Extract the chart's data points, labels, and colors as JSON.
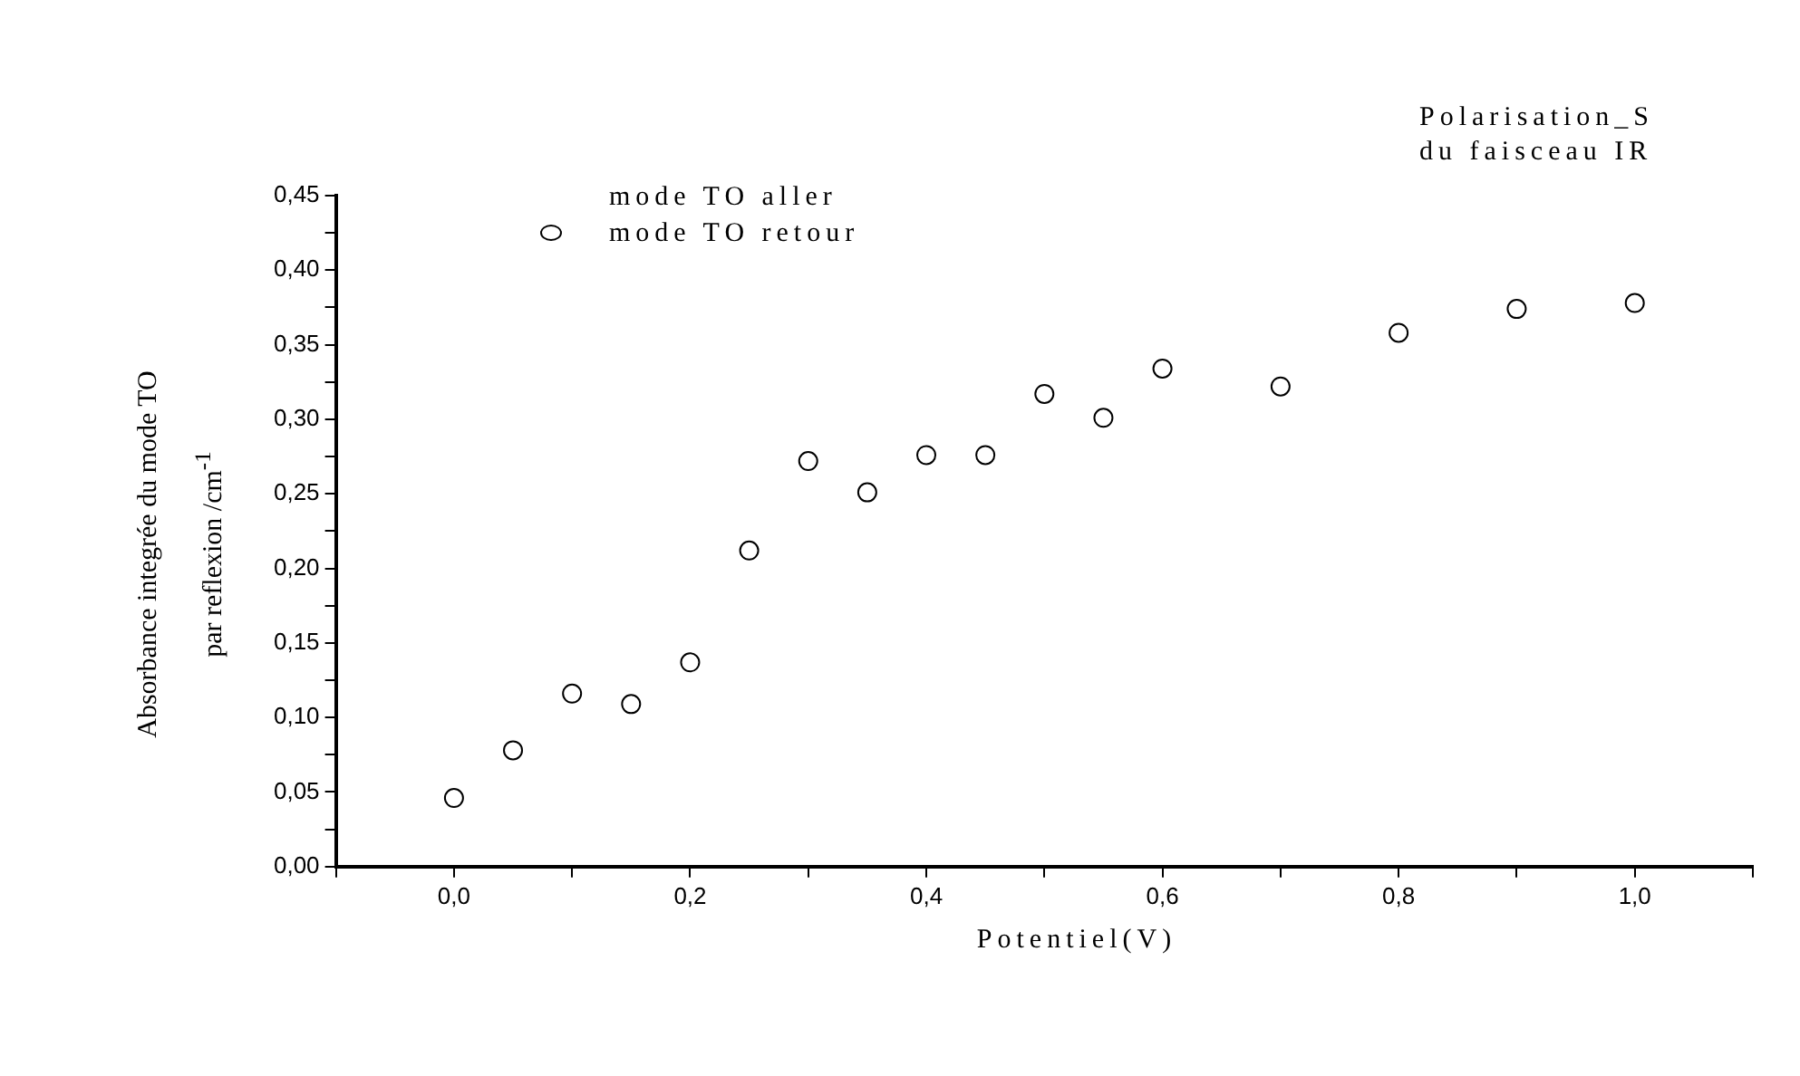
{
  "chart_data": {
    "type": "scatter",
    "ylabel": "Absorbance integrée du mode TO\npar reflexion /cm$^{-1}$",
    "xlabel": "Potentiel(V)",
    "annotations": [
      "Polarisation_S\ndu faisceau IR",
      "mode TO aller"
    ],
    "x": [
      0,
      0.05,
      0.1,
      0.15,
      0.2,
      0.25,
      0.3,
      0.35,
      0.4,
      0.45,
      0.5,
      0.55,
      0.6,
      0.7,
      0.8,
      0.9,
      1.0
    ],
    "series": [
      {
        "name": "mode TO retour",
        "color": "#000000",
        "values": [
          0.046,
          0.078,
          0.116,
          0.109,
          0.137,
          0.212,
          0.272,
          0.251,
          0.276,
          0.276,
          0.317,
          0.301,
          0.334,
          0.322,
          0.358,
          0.374,
          0.378
        ]
      }
    ],
    "marker": "circle",
    "legend": "top left",
    "xlim": [
      -0.1,
      1.1
    ],
    "ylim": [
      0,
      0.45
    ],
    "xticks": [
      {
        "value": -0.1,
        "label": null
      },
      {
        "value": 0,
        "label": "0,0"
      },
      {
        "value": 0.1,
        "label": null
      },
      {
        "value": 0.2,
        "label": "0,2"
      },
      {
        "value": 0.3,
        "label": null
      },
      {
        "value": 0.4,
        "label": "0,4"
      },
      {
        "value": 0.5,
        "label": null
      },
      {
        "value": 0.6,
        "label": "0,6"
      },
      {
        "value": 0.7,
        "label": null
      },
      {
        "value": 0.8,
        "label": "0,8"
      },
      {
        "value": 0.9,
        "label": null
      },
      {
        "value": 1.0,
        "label": "1,0"
      },
      {
        "value": 1.1,
        "label": null
      }
    ],
    "yticks": [
      {
        "value": 0,
        "label": "0,00"
      },
      {
        "value": 0.025,
        "label": null
      },
      {
        "value": 0.05,
        "label": "0,05"
      },
      {
        "value": 0.075,
        "label": null
      },
      {
        "value": 0.1,
        "label": "0,10"
      },
      {
        "value": 0.125,
        "label": null
      },
      {
        "value": 0.15,
        "label": "0,15"
      },
      {
        "value": 0.175,
        "label": null
      },
      {
        "value": 0.2,
        "label": "0,20"
      },
      {
        "value": 0.225,
        "label": null
      },
      {
        "value": 0.25,
        "label": "0,25"
      },
      {
        "value": 0.275,
        "label": null
      },
      {
        "value": 0.3,
        "label": "0,30"
      },
      {
        "value": 0.325,
        "label": null
      },
      {
        "value": 0.35,
        "label": "0,35"
      },
      {
        "value": 0.375,
        "label": null
      },
      {
        "value": 0.4,
        "label": "0,40"
      },
      {
        "value": 0.425,
        "label": null
      },
      {
        "value": 0.45,
        "label": "0,45"
      }
    ]
  }
}
